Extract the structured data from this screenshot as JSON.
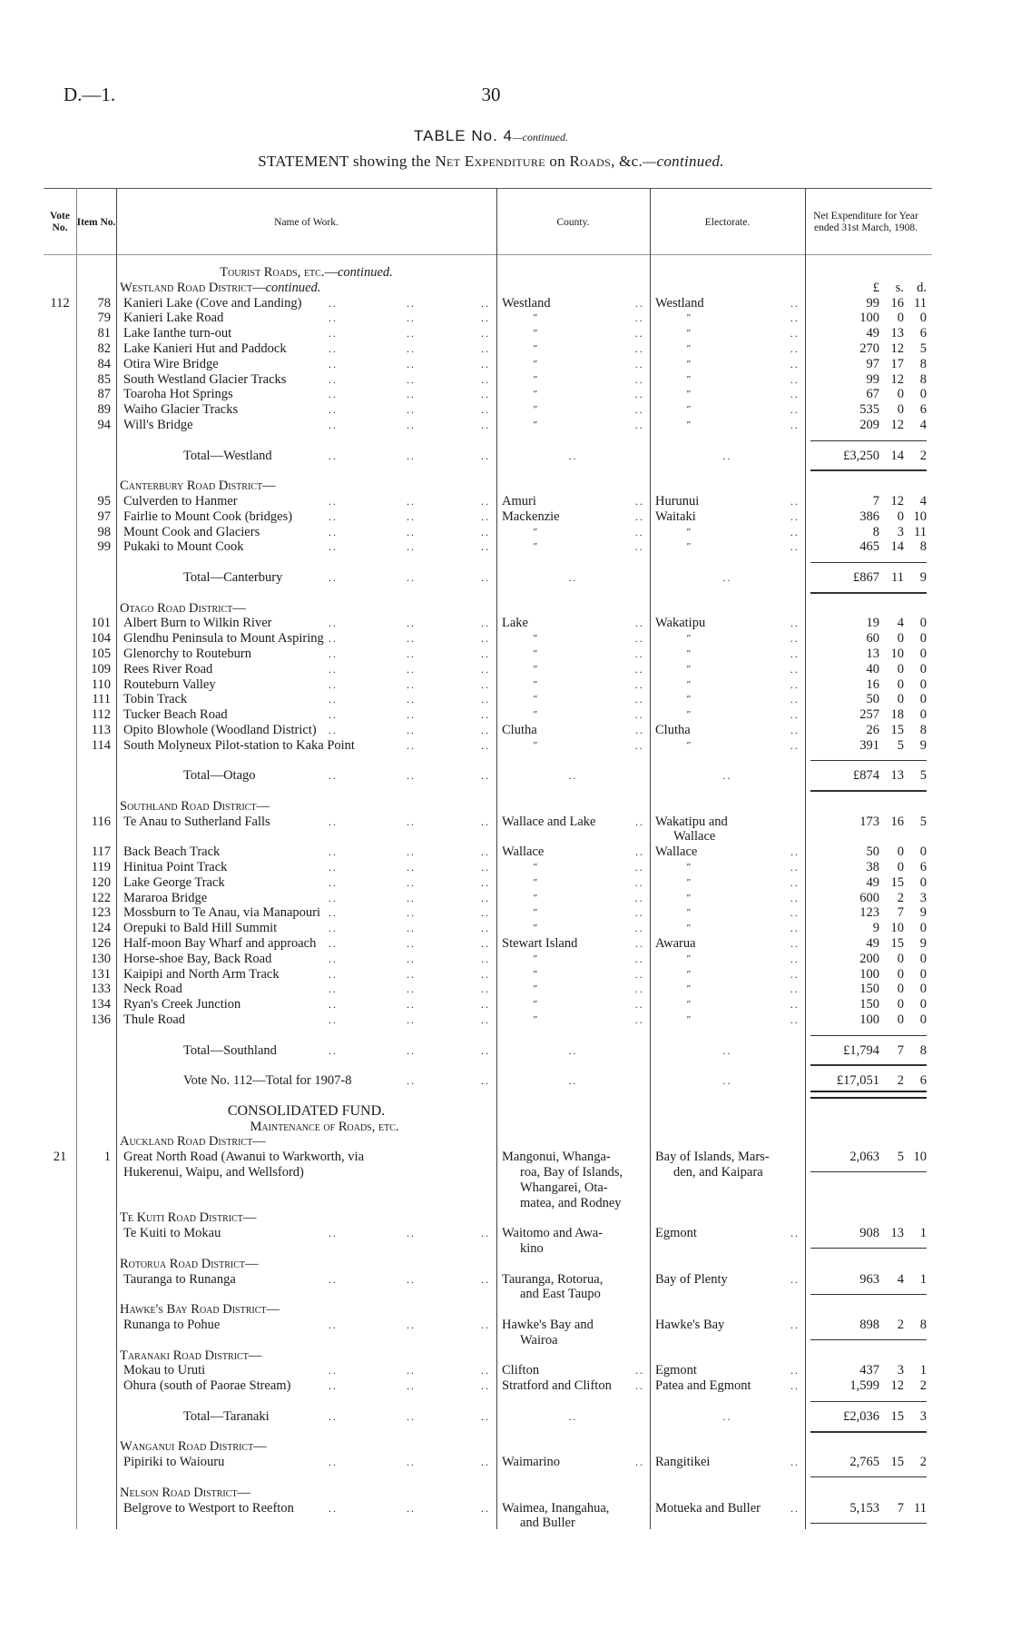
{
  "page": {
    "doc_ref": "D.—1.",
    "page_number": "30",
    "table_title": "TABLE No. 4",
    "table_title_suffix": "—continued.",
    "statement_prefix": "STATEMENT showing the ",
    "statement_sc": "Net Expenditure",
    "statement_mid": " on ",
    "statement_sc2": "Roads",
    "statement_end": ", &c.",
    "statement_suffix": "—continued."
  },
  "columns": {
    "vote": "Vote No.",
    "item": "Item No.",
    "name": "Name of Work.",
    "county": "County.",
    "electorate": "Electorate.",
    "net": "Net Expenditure for Year ended 31st March, 1908."
  },
  "rows": [
    {
      "type": "heading",
      "align": "center",
      "text": "Tourist Roads, etc.—",
      "italic": "continued."
    },
    {
      "type": "heading",
      "text": "Westland Road District—",
      "italic": "continued.",
      "units": [
        "£",
        "s.",
        "d."
      ]
    },
    {
      "type": "item",
      "vote": "112",
      "item": "78",
      "name": "Kanieri Lake (Cove and Landing)",
      "county": "Westland",
      "electorate": "Westland",
      "amount": [
        "99",
        "16",
        "11"
      ]
    },
    {
      "type": "item",
      "item": "79",
      "name": "Kanieri Lake Road",
      "county": "″",
      "electorate": "″",
      "amount": [
        "100",
        "0",
        "0"
      ]
    },
    {
      "type": "item",
      "item": "81",
      "name": "Lake Ianthe turn-out",
      "county": "″",
      "electorate": "″",
      "amount": [
        "49",
        "13",
        "6"
      ]
    },
    {
      "type": "item",
      "item": "82",
      "name": "Lake Kanieri Hut and Paddock",
      "county": "″",
      "electorate": "″",
      "amount": [
        "270",
        "12",
        "5"
      ]
    },
    {
      "type": "item",
      "item": "84",
      "name": "Otira Wire Bridge",
      "county": "″",
      "electorate": "″",
      "amount": [
        "97",
        "17",
        "8"
      ]
    },
    {
      "type": "item",
      "item": "85",
      "name": "South Westland Glacier Tracks",
      "county": "″",
      "electorate": "″",
      "amount": [
        "99",
        "12",
        "8"
      ]
    },
    {
      "type": "item",
      "item": "87",
      "name": "Toaroha Hot Springs",
      "county": "″",
      "electorate": "″",
      "amount": [
        "67",
        "0",
        "0"
      ]
    },
    {
      "type": "item",
      "item": "89",
      "name": "Waiho Glacier Tracks",
      "county": "″",
      "electorate": "″",
      "amount": [
        "535",
        "0",
        "6"
      ]
    },
    {
      "type": "item",
      "item": "94",
      "name": "Will's Bridge",
      "county": "″",
      "electorate": "″",
      "amount": [
        "209",
        "12",
        "4"
      ]
    },
    {
      "type": "blank"
    },
    {
      "type": "total",
      "name": "Total—Westland",
      "amount": [
        "£3,250",
        "14",
        "2"
      ]
    },
    {
      "type": "blank"
    },
    {
      "type": "heading",
      "text": "Canterbury Road District—"
    },
    {
      "type": "item",
      "item": "95",
      "name": "Culverden to Hanmer",
      "county": "Amuri",
      "electorate": "Hurunui",
      "amount": [
        "7",
        "12",
        "4"
      ]
    },
    {
      "type": "item",
      "item": "97",
      "name": "Fairlie to Mount Cook (bridges)",
      "county": "Mackenzie",
      "electorate": "Waitaki",
      "amount": [
        "386",
        "0",
        "10"
      ]
    },
    {
      "type": "item",
      "item": "98",
      "name": "Mount Cook and Glaciers",
      "county": "″",
      "electorate": "″",
      "amount": [
        "8",
        "3",
        "11"
      ]
    },
    {
      "type": "item",
      "item": "99",
      "name": "Pukaki to Mount Cook",
      "county": "″",
      "electorate": "″",
      "amount": [
        "465",
        "14",
        "8"
      ]
    },
    {
      "type": "blank"
    },
    {
      "type": "total",
      "name": "Total—Canterbury",
      "amount": [
        "£867",
        "11",
        "9"
      ]
    },
    {
      "type": "blank"
    },
    {
      "type": "heading",
      "text": "Otago Road District—"
    },
    {
      "type": "item",
      "item": "101",
      "name": "Albert Burn to Wilkin River",
      "county": "Lake",
      "electorate": "Wakatipu",
      "amount": [
        "19",
        "4",
        "0"
      ]
    },
    {
      "type": "item",
      "item": "104",
      "name": "Glendhu Peninsula to Mount Aspiring",
      "county": "″",
      "electorate": "″",
      "amount": [
        "60",
        "0",
        "0"
      ]
    },
    {
      "type": "item",
      "item": "105",
      "name": "Glenorchy to Routeburn",
      "county": "″",
      "electorate": "″",
      "amount": [
        "13",
        "10",
        "0"
      ]
    },
    {
      "type": "item",
      "item": "109",
      "name": "Rees River Road",
      "county": "″",
      "electorate": "″",
      "amount": [
        "40",
        "0",
        "0"
      ]
    },
    {
      "type": "item",
      "item": "110",
      "name": "Routeburn Valley",
      "county": "″",
      "electorate": "″",
      "amount": [
        "16",
        "0",
        "0"
      ]
    },
    {
      "type": "item",
      "item": "111",
      "name": "Tobin Track",
      "county": "″",
      "electorate": "″",
      "amount": [
        "50",
        "0",
        "0"
      ]
    },
    {
      "type": "item",
      "item": "112",
      "name": "Tucker Beach Road",
      "county": "″",
      "electorate": "″",
      "amount": [
        "257",
        "18",
        "0"
      ]
    },
    {
      "type": "item",
      "item": "113",
      "name": "Opito Blowhole (Woodland District)",
      "county": "Clutha",
      "electorate": "Clutha",
      "amount": [
        "26",
        "15",
        "8"
      ]
    },
    {
      "type": "item",
      "item": "114",
      "name": "South Molyneux Pilot-station to Kaka Point",
      "county": "″",
      "electorate": "″",
      "amount": [
        "391",
        "5",
        "9"
      ]
    },
    {
      "type": "blank"
    },
    {
      "type": "total",
      "name": "Total—Otago",
      "amount": [
        "£874",
        "13",
        "5"
      ]
    },
    {
      "type": "blank"
    },
    {
      "type": "heading",
      "text": "Southland Road District—"
    },
    {
      "type": "item",
      "item": "116",
      "name": "Te Anau to Sutherland Falls",
      "county": "Wallace and Lake",
      "electorate": "Wakatipu and\nWallace",
      "amount": [
        "173",
        "16",
        "5"
      ]
    },
    {
      "type": "item",
      "item": "117",
      "name": "Back Beach Track",
      "county": "Wallace",
      "electorate": "Wallace",
      "amount": [
        "50",
        "0",
        "0"
      ]
    },
    {
      "type": "item",
      "item": "119",
      "name": "Hinitua Point Track",
      "county": "″",
      "electorate": "″",
      "amount": [
        "38",
        "0",
        "6"
      ]
    },
    {
      "type": "item",
      "item": "120",
      "name": "Lake George Track",
      "county": "″",
      "electorate": "″",
      "amount": [
        "49",
        "15",
        "0"
      ]
    },
    {
      "type": "item",
      "item": "122",
      "name": "Mararoa Bridge",
      "county": "″",
      "electorate": "″",
      "amount": [
        "600",
        "2",
        "3"
      ]
    },
    {
      "type": "item",
      "item": "123",
      "name": "Mossburn to Te Anau, via Manapouri",
      "county": "″",
      "electorate": "″",
      "amount": [
        "123",
        "7",
        "9"
      ]
    },
    {
      "type": "item",
      "item": "124",
      "name": "Orepuki to Bald Hill Summit",
      "county": "″",
      "electorate": "″",
      "amount": [
        "9",
        "10",
        "0"
      ]
    },
    {
      "type": "item",
      "item": "126",
      "name": "Half-moon Bay Wharf and approach",
      "county": "Stewart Island",
      "electorate": "Awarua",
      "amount": [
        "49",
        "15",
        "9"
      ]
    },
    {
      "type": "item",
      "item": "130",
      "name": "Horse-shoe Bay, Back Road",
      "county": "″",
      "electorate": "″",
      "amount": [
        "200",
        "0",
        "0"
      ]
    },
    {
      "type": "item",
      "item": "131",
      "name": "Kaipipi and North Arm Track",
      "county": "″",
      "electorate": "″",
      "amount": [
        "100",
        "0",
        "0"
      ]
    },
    {
      "type": "item",
      "item": "133",
      "name": "Neck Road",
      "county": "″",
      "electorate": "″",
      "amount": [
        "150",
        "0",
        "0"
      ]
    },
    {
      "type": "item",
      "item": "134",
      "name": "Ryan's Creek Junction",
      "county": "″",
      "electorate": "″",
      "amount": [
        "150",
        "0",
        "0"
      ]
    },
    {
      "type": "item",
      "item": "136",
      "name": "Thule Road",
      "county": "″",
      "electorate": "″",
      "amount": [
        "100",
        "0",
        "0"
      ]
    },
    {
      "type": "blank"
    },
    {
      "type": "total",
      "name": "Total—Southland",
      "amount": [
        "£1,794",
        "7",
        "8"
      ]
    },
    {
      "type": "blank"
    },
    {
      "type": "total",
      "grand": true,
      "name": "Vote No. 112—Total for 1907-8",
      "amount": [
        "£17,051",
        "2",
        "6"
      ]
    },
    {
      "type": "blank"
    },
    {
      "type": "heading",
      "align": "center",
      "plain": true,
      "text": "CONSOLIDATED FUND."
    },
    {
      "type": "heading",
      "align": "center",
      "text": "Maintenance of Roads, etc."
    },
    {
      "type": "heading",
      "text": "Auckland Road District—"
    },
    {
      "type": "item",
      "rule_under": true,
      "vote": "21",
      "item": "1",
      "name": "Great North Road (Awanui to Warkworth, via\n   Hukerenui, Waipu, and Wellsford)",
      "county": "Mangonui, Whanga-\nroa, Bay of Islands,\nWhangarei, Ota-\nmatea, and Rodney",
      "electorate": "Bay of Islands, Mars-\nden, and Kaipara",
      "amount": [
        "2,063",
        "5",
        "10"
      ]
    },
    {
      "type": "heading",
      "text": "Te Kuiti Road District—"
    },
    {
      "type": "item",
      "rule_under": true,
      "name": "Te Kuiti to Mokau",
      "county": "Waitomo and Awa-\nkino",
      "electorate": "Egmont",
      "amount": [
        "908",
        "13",
        "1"
      ]
    },
    {
      "type": "heading",
      "text": "Rotorua Road District—"
    },
    {
      "type": "item",
      "rule_under": true,
      "name": "Tauranga to Runanga",
      "county": "Tauranga, Rotorua,\nand East Taupo",
      "electorate": "Bay of Plenty",
      "amount": [
        "963",
        "4",
        "1"
      ]
    },
    {
      "type": "heading",
      "text": "Hawke's Bay Road District—"
    },
    {
      "type": "item",
      "rule_under": true,
      "name": "Runanga to Pohue",
      "county": "Hawke's Bay and\nWairoa",
      "electorate": "Hawke's Bay",
      "amount": [
        "898",
        "2",
        "8"
      ]
    },
    {
      "type": "heading",
      "text": "Taranaki Road District—"
    },
    {
      "type": "item",
      "name": "Mokau to Uruti",
      "county": "Clifton",
      "electorate": "Egmont",
      "amount": [
        "437",
        "3",
        "1"
      ]
    },
    {
      "type": "item",
      "name": "Ohura (south of Paorae Stream)",
      "county": "Stratford and Clifton",
      "electorate": "Patea and Egmont",
      "amount": [
        "1,599",
        "12",
        "2"
      ]
    },
    {
      "type": "blank"
    },
    {
      "type": "total",
      "name": "Total—Taranaki",
      "amount": [
        "£2,036",
        "15",
        "3"
      ]
    },
    {
      "type": "blank"
    },
    {
      "type": "heading",
      "text": "Wanganui Road District—"
    },
    {
      "type": "item",
      "rule_under": true,
      "name": "Pipiriki to Waiouru",
      "county": "Waimarino",
      "electorate": "Rangitikei",
      "amount": [
        "2,765",
        "15",
        "2"
      ]
    },
    {
      "type": "blank"
    },
    {
      "type": "heading",
      "text": "Nelson Road District—"
    },
    {
      "type": "item",
      "rule_under": true,
      "name": "Belgrove to Westport to Reefton",
      "county": "Waimea, Inangahua,\nand Buller",
      "electorate": "Motueka and Buller",
      "amount": [
        "5,153",
        "7",
        "11"
      ]
    }
  ]
}
